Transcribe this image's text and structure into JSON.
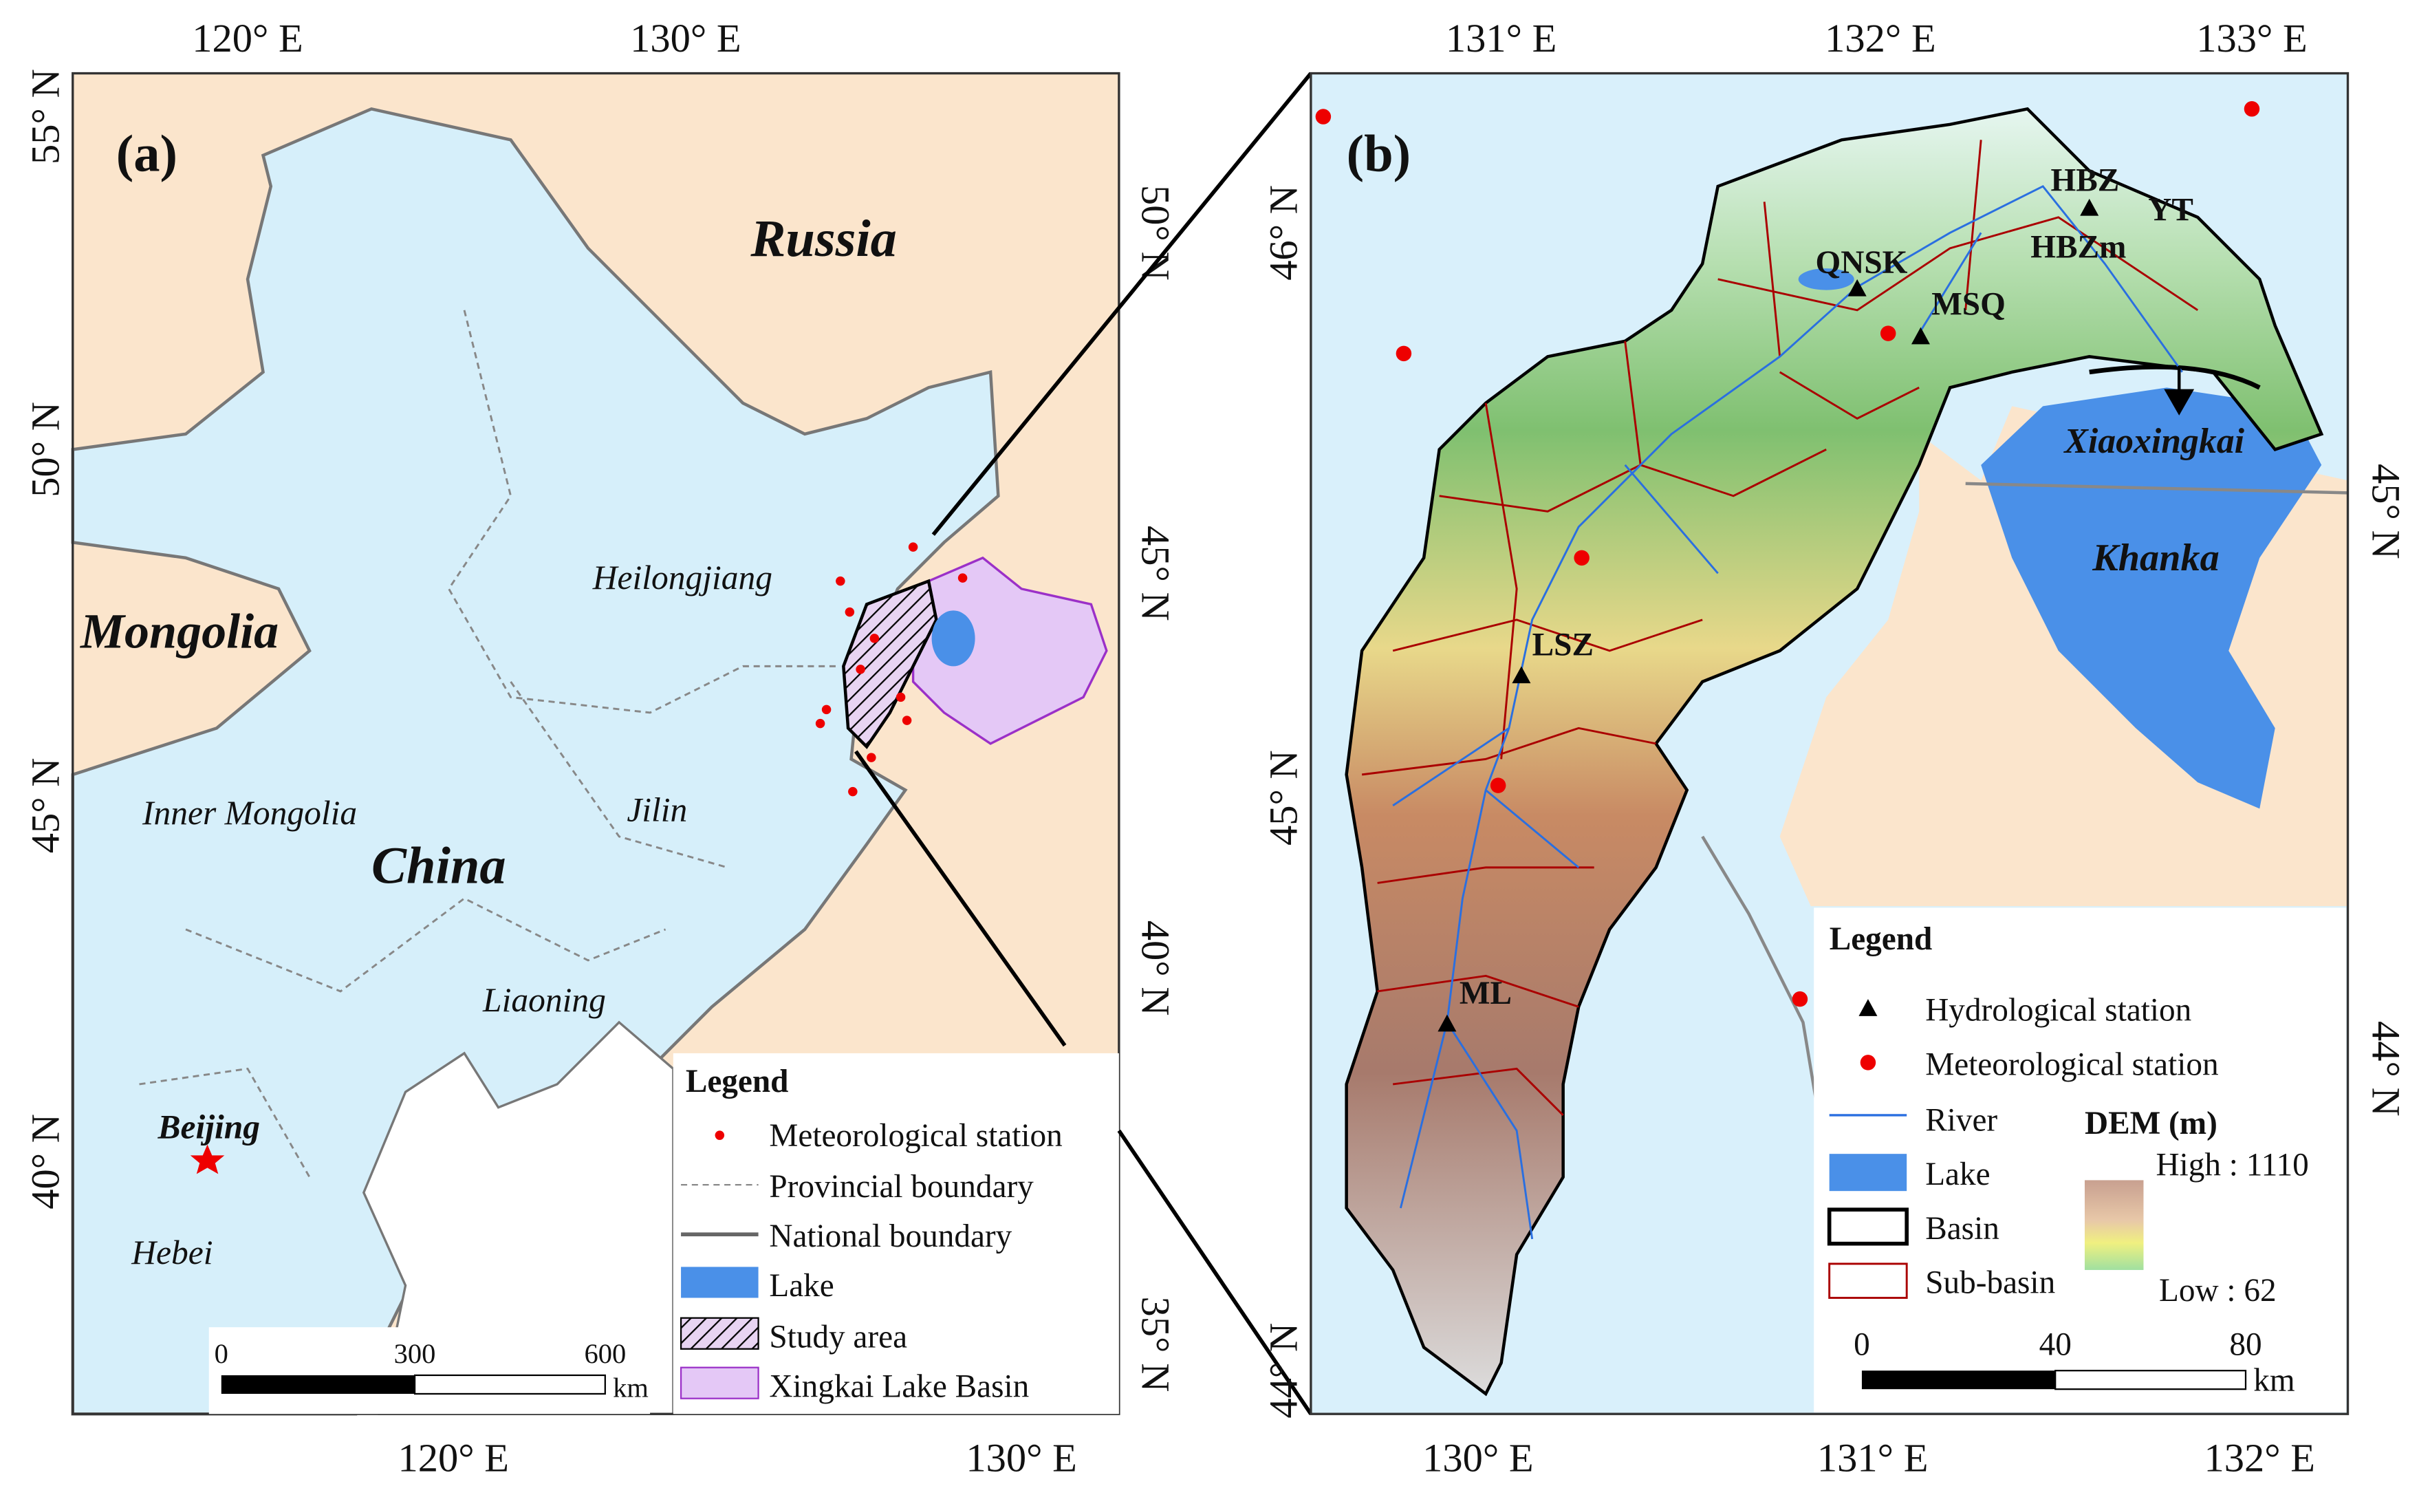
{
  "panel_a": {
    "label": "(a)",
    "top_ticks": [
      "120° E",
      "130° E"
    ],
    "bottom_ticks": [
      "120° E",
      "130° E"
    ],
    "left_ticks": [
      "55° N",
      "50° N",
      "45° N",
      "40° N"
    ],
    "right_ticks": [
      "50° N",
      "45° N",
      "40° N",
      "35° N"
    ],
    "places": {
      "russia": "Russia",
      "mongolia": "Mongolia",
      "china": "China",
      "heilongjiang": "Heilongjiang",
      "inner_mongolia": "Inner Mongolia",
      "jilin": "Jilin",
      "liaoning": "Liaoning",
      "beijing": "Beijing",
      "hebei": "Hebei"
    },
    "legend": {
      "title": "Legend",
      "items": [
        "Meteorological station",
        "Provincial boundary",
        "National boundary",
        "Lake",
        "Study area",
        "Xingkai Lake Basin"
      ]
    },
    "scale": {
      "ticks": [
        "0",
        "300",
        "600"
      ],
      "unit": "km"
    }
  },
  "panel_b": {
    "label": "(b)",
    "top_ticks": [
      "131° E",
      "132° E",
      "133° E"
    ],
    "bottom_ticks": [
      "130° E",
      "131° E",
      "132° E"
    ],
    "left_ticks": [
      "46° N",
      "45° N",
      "44° N"
    ],
    "right_ticks": [
      "45° N",
      "44° N"
    ],
    "stations": [
      "HBZ",
      "YT",
      "QNSK",
      "HBZm",
      "MSQ",
      "LSZ",
      "ML"
    ],
    "lakes": [
      "Xiaoxingkai",
      "Khanka"
    ],
    "legend": {
      "title": "Legend",
      "items": [
        "Hydrological station",
        "Meteorological station",
        "River",
        "Lake",
        "Basin",
        "Sub-basin"
      ],
      "dem_title": "DEM (m)",
      "dem_high": "High : 1110",
      "dem_low": "Low : 62"
    },
    "scale": {
      "ticks": [
        "0",
        "40",
        "80"
      ],
      "unit": "km"
    }
  }
}
